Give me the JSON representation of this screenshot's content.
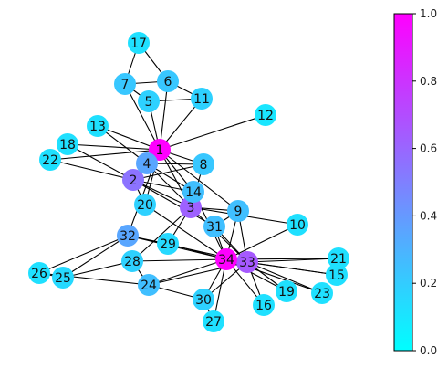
{
  "colorbar": {
    "min_color": "#00ffff",
    "max_color": "#ff00ff",
    "ticks": [
      {
        "value": 0.0,
        "label": "0.0"
      },
      {
        "value": 0.2,
        "label": "0.2"
      },
      {
        "value": 0.4,
        "label": "0.4"
      },
      {
        "value": 0.6,
        "label": "0.6"
      },
      {
        "value": 0.8,
        "label": "0.8"
      },
      {
        "value": 1.0,
        "label": "1.0"
      }
    ]
  },
  "graph": {
    "nodes": [
      {
        "id": "1",
        "value": 1.0
      },
      {
        "id": "2",
        "value": 0.55
      },
      {
        "id": "3",
        "value": 0.62
      },
      {
        "id": "4",
        "value": 0.35
      },
      {
        "id": "5",
        "value": 0.18
      },
      {
        "id": "6",
        "value": 0.22
      },
      {
        "id": "7",
        "value": 0.22
      },
      {
        "id": "8",
        "value": 0.22
      },
      {
        "id": "9",
        "value": 0.25
      },
      {
        "id": "10",
        "value": 0.12
      },
      {
        "id": "11",
        "value": 0.18
      },
      {
        "id": "12",
        "value": 0.1
      },
      {
        "id": "13",
        "value": 0.12
      },
      {
        "id": "14",
        "value": 0.25
      },
      {
        "id": "15",
        "value": 0.12
      },
      {
        "id": "16",
        "value": 0.12
      },
      {
        "id": "17",
        "value": 0.12
      },
      {
        "id": "18",
        "value": 0.12
      },
      {
        "id": "19",
        "value": 0.12
      },
      {
        "id": "20",
        "value": 0.18
      },
      {
        "id": "21",
        "value": 0.12
      },
      {
        "id": "22",
        "value": 0.12
      },
      {
        "id": "23",
        "value": 0.12
      },
      {
        "id": "24",
        "value": 0.25
      },
      {
        "id": "25",
        "value": 0.15
      },
      {
        "id": "26",
        "value": 0.12
      },
      {
        "id": "27",
        "value": 0.12
      },
      {
        "id": "28",
        "value": 0.18
      },
      {
        "id": "29",
        "value": 0.15
      },
      {
        "id": "30",
        "value": 0.18
      },
      {
        "id": "31",
        "value": 0.25
      },
      {
        "id": "32",
        "value": 0.35
      },
      {
        "id": "33",
        "value": 0.65
      },
      {
        "id": "34",
        "value": 1.0
      }
    ],
    "edges": [
      [
        "1",
        "2"
      ],
      [
        "1",
        "3"
      ],
      [
        "1",
        "4"
      ],
      [
        "1",
        "5"
      ],
      [
        "1",
        "6"
      ],
      [
        "1",
        "7"
      ],
      [
        "1",
        "8"
      ],
      [
        "1",
        "9"
      ],
      [
        "1",
        "11"
      ],
      [
        "1",
        "12"
      ],
      [
        "1",
        "13"
      ],
      [
        "1",
        "14"
      ],
      [
        "1",
        "18"
      ],
      [
        "1",
        "20"
      ],
      [
        "1",
        "22"
      ],
      [
        "1",
        "32"
      ],
      [
        "2",
        "3"
      ],
      [
        "2",
        "4"
      ],
      [
        "2",
        "8"
      ],
      [
        "2",
        "14"
      ],
      [
        "2",
        "18"
      ],
      [
        "2",
        "20"
      ],
      [
        "2",
        "22"
      ],
      [
        "2",
        "31"
      ],
      [
        "3",
        "4"
      ],
      [
        "3",
        "8"
      ],
      [
        "3",
        "9"
      ],
      [
        "3",
        "10"
      ],
      [
        "3",
        "14"
      ],
      [
        "3",
        "28"
      ],
      [
        "3",
        "29"
      ],
      [
        "3",
        "33"
      ],
      [
        "4",
        "8"
      ],
      [
        "4",
        "13"
      ],
      [
        "4",
        "14"
      ],
      [
        "5",
        "7"
      ],
      [
        "5",
        "11"
      ],
      [
        "6",
        "7"
      ],
      [
        "6",
        "11"
      ],
      [
        "6",
        "17"
      ],
      [
        "7",
        "17"
      ],
      [
        "9",
        "31"
      ],
      [
        "9",
        "33"
      ],
      [
        "9",
        "34"
      ],
      [
        "10",
        "34"
      ],
      [
        "14",
        "34"
      ],
      [
        "15",
        "33"
      ],
      [
        "15",
        "34"
      ],
      [
        "16",
        "33"
      ],
      [
        "16",
        "34"
      ],
      [
        "19",
        "33"
      ],
      [
        "19",
        "34"
      ],
      [
        "20",
        "34"
      ],
      [
        "21",
        "33"
      ],
      [
        "21",
        "34"
      ],
      [
        "23",
        "33"
      ],
      [
        "23",
        "34"
      ],
      [
        "24",
        "26"
      ],
      [
        "24",
        "28"
      ],
      [
        "24",
        "30"
      ],
      [
        "24",
        "33"
      ],
      [
        "24",
        "34"
      ],
      [
        "25",
        "26"
      ],
      [
        "25",
        "28"
      ],
      [
        "25",
        "32"
      ],
      [
        "26",
        "32"
      ],
      [
        "27",
        "30"
      ],
      [
        "27",
        "34"
      ],
      [
        "28",
        "34"
      ],
      [
        "29",
        "32"
      ],
      [
        "29",
        "34"
      ],
      [
        "30",
        "33"
      ],
      [
        "30",
        "34"
      ],
      [
        "31",
        "33"
      ],
      [
        "31",
        "34"
      ],
      [
        "32",
        "33"
      ],
      [
        "32",
        "34"
      ],
      [
        "33",
        "34"
      ]
    ]
  }
}
